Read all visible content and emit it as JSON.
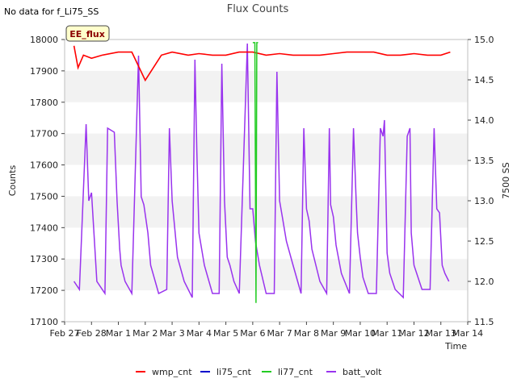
{
  "chart_data": {
    "type": "line",
    "title": "Flux Counts",
    "note": "No data for f_Li75_SS",
    "badge": "EE_flux",
    "xlabel": "Time",
    "ylabel": "Counts",
    "ylabel_right": "7500 SS",
    "x_ticks": [
      "Feb 27",
      "Feb 28",
      "Mar 1",
      "Mar 2",
      "Mar 3",
      "Mar 4",
      "Mar 5",
      "Mar 6",
      "Mar 7",
      "Mar 8",
      "Mar 9",
      "Mar 10",
      "Mar 11",
      "Mar 12",
      "Mar 13",
      "Mar 14"
    ],
    "xlim": [
      0,
      15
    ],
    "ylim": [
      17100,
      18000
    ],
    "y_ticks": [
      17100,
      17200,
      17300,
      17400,
      17500,
      17600,
      17700,
      17800,
      17900,
      18000
    ],
    "ylim_right": [
      11.5,
      15.0
    ],
    "y_ticks_right": [
      "11.5",
      "12.0",
      "12.5",
      "13.0",
      "13.5",
      "14.0",
      "14.5",
      "15.0"
    ],
    "grid": "horizontal bands",
    "legend_position": "bottom",
    "colors": {
      "wmp_cnt": "#ff0000",
      "li75_cnt": "#0000cc",
      "li77_cnt": "#22cc22",
      "batt_volt": "#9933ee",
      "band": "#f2f2f2",
      "badge_bg": "#ffffcc"
    },
    "series": [
      {
        "name": "wmp_cnt",
        "axis": "left",
        "x": [
          0.35,
          0.5,
          0.7,
          1.0,
          1.4,
          2.0,
          2.5,
          3.0,
          3.6,
          4.0,
          4.6,
          5.0,
          5.5,
          6.0,
          6.5,
          7.0,
          7.5,
          8.0,
          8.5,
          9.0,
          9.5,
          10.0,
          10.5,
          11.0,
          11.5,
          12.0,
          12.5,
          13.0,
          13.5,
          14.0,
          14.35
        ],
        "values": [
          17980,
          17910,
          17950,
          17940,
          17950,
          17960,
          17960,
          17870,
          17950,
          17960,
          17950,
          17955,
          17950,
          17950,
          17960,
          17960,
          17950,
          17955,
          17950,
          17950,
          17950,
          17955,
          17960,
          17960,
          17960,
          17950,
          17950,
          17955,
          17950,
          17950,
          17960
        ]
      },
      {
        "name": "li75_cnt",
        "axis": "left",
        "x": [],
        "values": []
      },
      {
        "name": "li77_cnt",
        "axis": "left",
        "x": [
          7.0,
          7.08,
          7.12,
          7.15,
          7.2
        ],
        "values": [
          17990,
          17990,
          17160,
          17990,
          17990
        ]
      },
      {
        "name": "batt_volt",
        "axis": "right",
        "x": [
          0.35,
          0.55,
          0.8,
          0.9,
          0.95,
          1.0,
          1.2,
          1.5,
          1.6,
          1.85,
          1.95,
          2.05,
          2.1,
          2.25,
          2.5,
          2.75,
          2.85,
          2.95,
          3.1,
          3.2,
          3.5,
          3.8,
          3.9,
          4.0,
          4.2,
          4.45,
          4.75,
          4.85,
          4.92,
          5.0,
          5.2,
          5.5,
          5.75,
          5.85,
          5.95,
          6.05,
          6.15,
          6.3,
          6.5,
          6.8,
          6.9,
          7.0,
          7.1,
          7.25,
          7.5,
          7.8,
          7.9,
          8.0,
          8.1,
          8.25,
          8.5,
          8.8,
          8.9,
          9.0,
          9.1,
          9.2,
          9.5,
          9.75,
          9.85,
          9.9,
          10.0,
          10.1,
          10.3,
          10.6,
          10.75,
          10.85,
          10.9,
          11.0,
          11.1,
          11.3,
          11.6,
          11.75,
          11.85,
          11.9,
          12.0,
          12.1,
          12.3,
          12.6,
          12.75,
          12.85,
          12.9,
          13.0,
          13.1,
          13.3,
          13.6,
          13.75,
          13.85,
          13.95,
          14.05,
          14.15,
          14.3
        ],
        "values": [
          12.0,
          11.9,
          13.95,
          13.0,
          13.05,
          13.1,
          12.0,
          11.85,
          13.9,
          13.85,
          13.0,
          12.4,
          12.2,
          12.0,
          11.85,
          14.8,
          13.05,
          12.95,
          12.6,
          12.2,
          11.85,
          11.9,
          13.9,
          13.0,
          12.3,
          12.0,
          11.8,
          14.75,
          13.6,
          12.6,
          12.2,
          11.85,
          11.85,
          14.7,
          13.0,
          12.3,
          12.2,
          12.0,
          11.85,
          14.95,
          12.9,
          12.9,
          12.5,
          12.2,
          11.85,
          11.85,
          14.6,
          13.0,
          12.8,
          12.5,
          12.2,
          11.85,
          13.9,
          12.9,
          12.75,
          12.4,
          12.0,
          11.85,
          13.9,
          12.95,
          12.8,
          12.45,
          12.1,
          11.85,
          13.9,
          13.0,
          12.6,
          12.3,
          12.05,
          11.85,
          11.85,
          13.9,
          13.8,
          14.0,
          12.35,
          12.1,
          11.9,
          11.8,
          13.8,
          13.9,
          12.6,
          12.2,
          12.1,
          11.9,
          11.9,
          13.9,
          12.9,
          12.85,
          12.2,
          12.1,
          12.0
        ]
      }
    ]
  }
}
